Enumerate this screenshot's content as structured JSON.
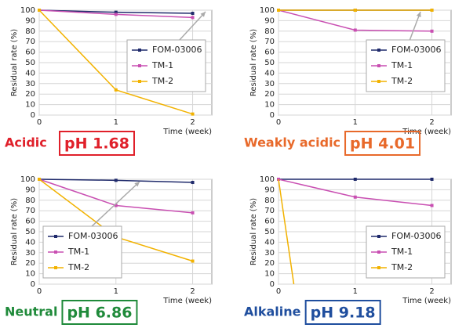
{
  "chart_data": [
    {
      "type": "line",
      "condition": "Acidic",
      "condition_color": "#e0202a",
      "ph_label": "pH 1.68",
      "x": [
        0,
        1,
        2
      ],
      "xlim": [
        0,
        2.25
      ],
      "xticks": [
        0,
        1,
        2
      ],
      "ylim": [
        0,
        100
      ],
      "yticks": [
        0,
        10,
        20,
        30,
        40,
        50,
        60,
        70,
        80,
        90,
        100
      ],
      "xlabel": "Time (week)",
      "ylabel": "Residual rate (%)",
      "grid": true,
      "legend": "center right",
      "series": [
        {
          "name": "FOM-03006",
          "color": "#1f2a6b",
          "values": [
            100,
            98,
            97
          ]
        },
        {
          "name": "TM-1",
          "color": "#c94fb2",
          "values": [
            100,
            96,
            93
          ]
        },
        {
          "name": "TM-2",
          "color": "#f2b200",
          "values": [
            100,
            24,
            1
          ]
        }
      ]
    },
    {
      "type": "line",
      "condition": "Weakly acidic",
      "condition_color": "#e8692a",
      "ph_label": "pH 4.01",
      "x": [
        0,
        1,
        2
      ],
      "xlim": [
        0,
        2.25
      ],
      "xticks": [
        0,
        1,
        2
      ],
      "ylim": [
        0,
        100
      ],
      "yticks": [
        0,
        10,
        20,
        30,
        40,
        50,
        60,
        70,
        80,
        90,
        100
      ],
      "xlabel": "Time (week)",
      "ylabel": "Residual rate (%)",
      "grid": true,
      "legend": "center right",
      "series": [
        {
          "name": "FOM-03006",
          "color": "#1f2a6b",
          "values": [
            100,
            100,
            100
          ]
        },
        {
          "name": "TM-1",
          "color": "#c94fb2",
          "values": [
            100,
            81,
            80
          ]
        },
        {
          "name": "TM-2",
          "color": "#f2b200",
          "values": [
            100,
            100,
            100
          ]
        }
      ]
    },
    {
      "type": "line",
      "condition": "Neutral",
      "condition_color": "#1f8a3a",
      "ph_label": "pH 6.86",
      "x": [
        0,
        1,
        2
      ],
      "xlim": [
        0,
        2.25
      ],
      "xticks": [
        0,
        1,
        2
      ],
      "ylim": [
        0,
        100
      ],
      "yticks": [
        0,
        10,
        20,
        30,
        40,
        50,
        60,
        70,
        80,
        90,
        100
      ],
      "xlabel": "Time (week)",
      "ylabel": "Residual rate (%)",
      "grid": true,
      "legend": "lower left",
      "series": [
        {
          "name": "FOM-03006",
          "color": "#1f2a6b",
          "values": [
            100,
            99,
            97
          ]
        },
        {
          "name": "TM-1",
          "color": "#c94fb2",
          "values": [
            100,
            75,
            68
          ]
        },
        {
          "name": "TM-2",
          "color": "#f2b200",
          "values": [
            100,
            45,
            22
          ]
        }
      ]
    },
    {
      "type": "line",
      "condition": "Alkaline",
      "condition_color": "#1f4e9e",
      "ph_label": "pH 9.18",
      "x": [
        0,
        1,
        2
      ],
      "xlim": [
        0,
        2.25
      ],
      "xticks": [
        0,
        1,
        2
      ],
      "ylim": [
        0,
        100
      ],
      "yticks": [
        0,
        10,
        20,
        30,
        40,
        50,
        60,
        70,
        80,
        90,
        100
      ],
      "xlabel": "Time (week)",
      "ylabel": "Residual rate (%)",
      "grid": true,
      "legend": "lower right",
      "series": [
        {
          "name": "FOM-03006",
          "color": "#1f2a6b",
          "values": [
            100,
            100,
            100
          ]
        },
        {
          "name": "TM-1",
          "color": "#c94fb2",
          "values": [
            100,
            83,
            75
          ]
        },
        {
          "name": "TM-2",
          "color": "#f2b200",
          "x": [
            0,
            0.2
          ],
          "values": [
            100,
            0
          ],
          "markers": false
        }
      ]
    }
  ]
}
